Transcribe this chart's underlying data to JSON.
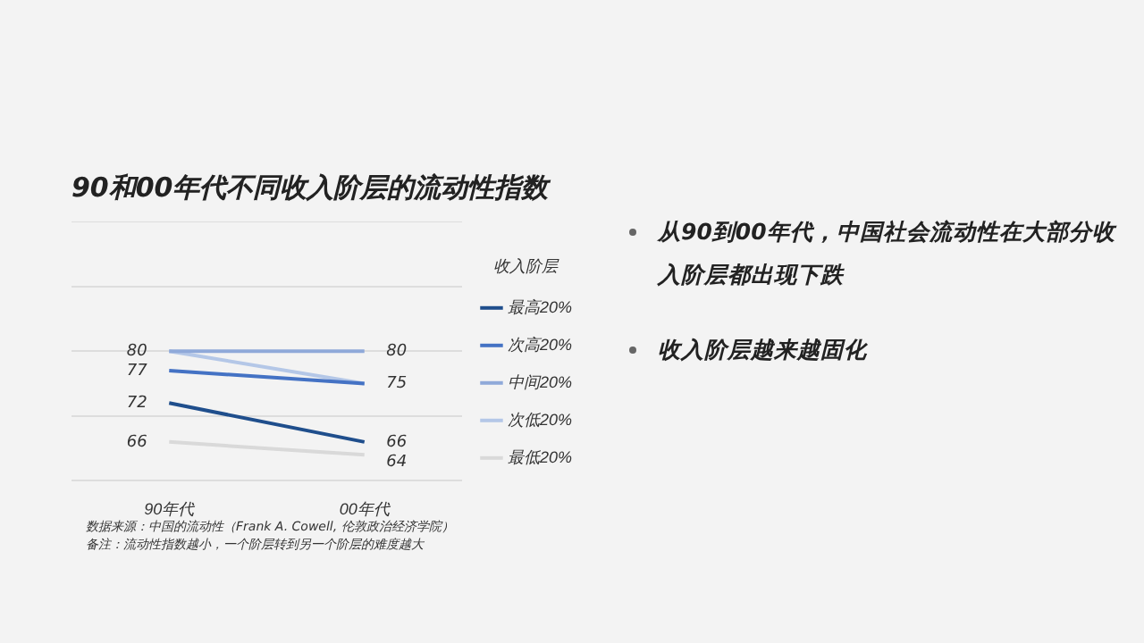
{
  "chart_data": {
    "type": "line",
    "title": "90和00年代不同收入阶层的流动性指数",
    "legend_title": "收入阶层",
    "categories": [
      "90年代",
      "00年代"
    ],
    "series": [
      {
        "name": "最高20%",
        "color": "#1f4e8c",
        "values": [
          72,
          66
        ],
        "value_labels": [
          "72",
          "66"
        ]
      },
      {
        "name": "次高20%",
        "color": "#4472c4",
        "values": [
          77,
          75
        ],
        "value_labels": [
          "77",
          "75"
        ]
      },
      {
        "name": "中间20%",
        "color": "#8fa9d9",
        "values": [
          80,
          80
        ],
        "value_labels": [
          "80",
          "80"
        ]
      },
      {
        "name": "次低20%",
        "color": "#b4c7e7",
        "values": [
          80,
          75
        ],
        "value_labels": [
          null,
          null
        ]
      },
      {
        "name": "最低20%",
        "color": "#d9d9d9",
        "values": [
          66,
          64
        ],
        "value_labels": [
          "66",
          "64"
        ]
      }
    ],
    "ylim": [
      60,
      100
    ],
    "yticks": [
      {
        "value": 60,
        "label": null
      },
      {
        "value": 70,
        "label": null
      },
      {
        "value": 80,
        "label": null
      },
      {
        "value": 90,
        "label": null
      },
      {
        "value": 100,
        "label": null
      }
    ],
    "grid": "y",
    "tick_labels": "x",
    "legend": "right",
    "marker": "none",
    "line_style": "solid",
    "annotations": [
      "从90到00年代，中国社会流动性在大部分收入阶层都出现下跌",
      "收入阶层越来越固化",
      "数据来源：中国的流动性（Frank A. Cowell, 伦敦政治经济学院）",
      "备注：流动性指数越小，一个阶层转到另一个阶层的难度越大"
    ]
  }
}
